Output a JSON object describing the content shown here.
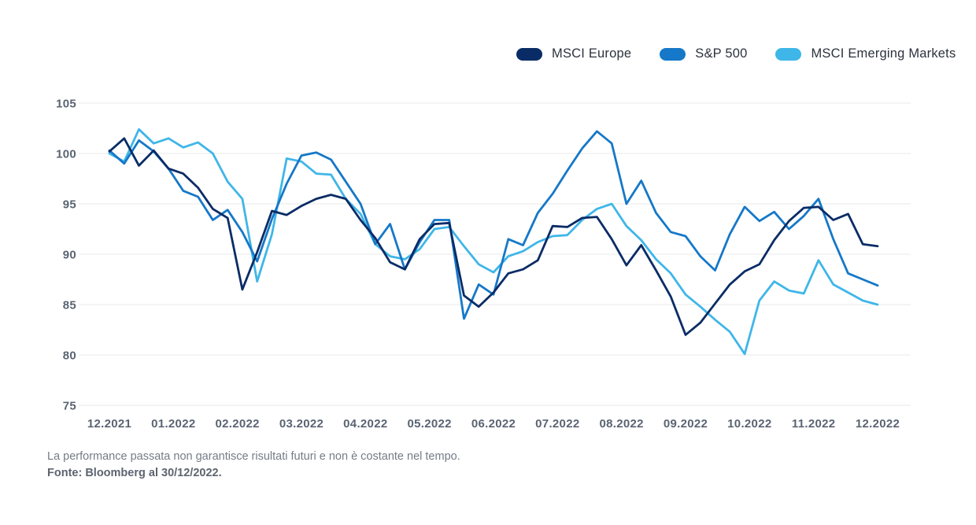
{
  "chart_data": {
    "type": "line",
    "title": "",
    "xlabel": "",
    "ylabel": "",
    "x_tick_labels": [
      "12.2021",
      "01.2022",
      "02.2022",
      "03.2022",
      "04.2022",
      "05.2022",
      "06.2022",
      "07.2022",
      "08.2022",
      "09.2022",
      "10.2022",
      "11.2022",
      "12.2022"
    ],
    "y_ticks": [
      105,
      100,
      95,
      90,
      85,
      80,
      75
    ],
    "ylim": [
      75,
      105
    ],
    "x_unit": "weekly observations, 30/12/2021 to 30/12/2022 (index, start = 100)",
    "grid": "horizontal",
    "legend_position": "top-right",
    "series": [
      {
        "name": "MSCI Emerging Markets",
        "color": "#3fb6e8",
        "values": [
          100.0,
          99.2,
          102.4,
          101.0,
          101.5,
          100.6,
          101.1,
          100.0,
          97.2,
          95.5,
          87.3,
          92.0,
          99.5,
          99.2,
          98.0,
          97.9,
          95.5,
          94.0,
          91.0,
          89.8,
          89.5,
          90.5,
          92.5,
          92.7,
          90.8,
          89.0,
          88.2,
          89.8,
          90.3,
          91.2,
          91.8,
          91.9,
          93.4,
          94.5,
          95.0,
          92.8,
          91.4,
          89.5,
          88.1,
          86.0,
          84.8,
          83.5,
          82.3,
          80.1,
          85.4,
          87.3,
          86.4,
          86.1,
          89.4,
          87.0,
          86.2,
          85.4,
          85.0
        ]
      },
      {
        "name": "S&P 500",
        "color": "#1578c8",
        "values": [
          100.3,
          99.0,
          101.3,
          100.2,
          98.5,
          96.3,
          95.7,
          93.4,
          94.4,
          92.2,
          89.3,
          93.5,
          97.0,
          99.8,
          100.1,
          99.4,
          97.2,
          95.0,
          91.0,
          93.0,
          88.5,
          91.2,
          93.4,
          93.4,
          83.6,
          87.0,
          86.0,
          91.5,
          90.9,
          94.1,
          96.0,
          98.3,
          100.5,
          102.2,
          101.0,
          95.0,
          97.3,
          94.1,
          92.2,
          91.8,
          89.8,
          88.4,
          92.0,
          94.7,
          93.3,
          94.2,
          92.5,
          93.8,
          95.5,
          91.5,
          88.1,
          87.5,
          86.9
        ]
      },
      {
        "name": "MSCI Europe",
        "color": "#0a2c66",
        "values": [
          100.2,
          101.5,
          98.8,
          100.3,
          98.5,
          98.0,
          96.6,
          94.5,
          93.6,
          86.5,
          90.2,
          94.3,
          93.9,
          94.8,
          95.5,
          95.9,
          95.5,
          93.4,
          91.6,
          89.2,
          88.5,
          91.5,
          93.0,
          93.1,
          85.9,
          84.8,
          86.2,
          88.1,
          88.5,
          89.4,
          92.8,
          92.7,
          93.6,
          93.7,
          91.5,
          88.9,
          90.9,
          88.4,
          85.8,
          82.0,
          83.2,
          85.1,
          87.0,
          88.3,
          89.0,
          91.4,
          93.3,
          94.6,
          94.7,
          93.4,
          94.0,
          91.0,
          90.8
        ]
      }
    ]
  },
  "legend": {
    "order": [
      "MSCI Europe",
      "S&P 500",
      "MSCI Emerging Markets"
    ]
  },
  "footnote": {
    "line1": "La performance passata non garantisce risultati futuri e non è costante nel tempo.",
    "line2": "Fonte: Bloomberg al 30/12/2022."
  }
}
